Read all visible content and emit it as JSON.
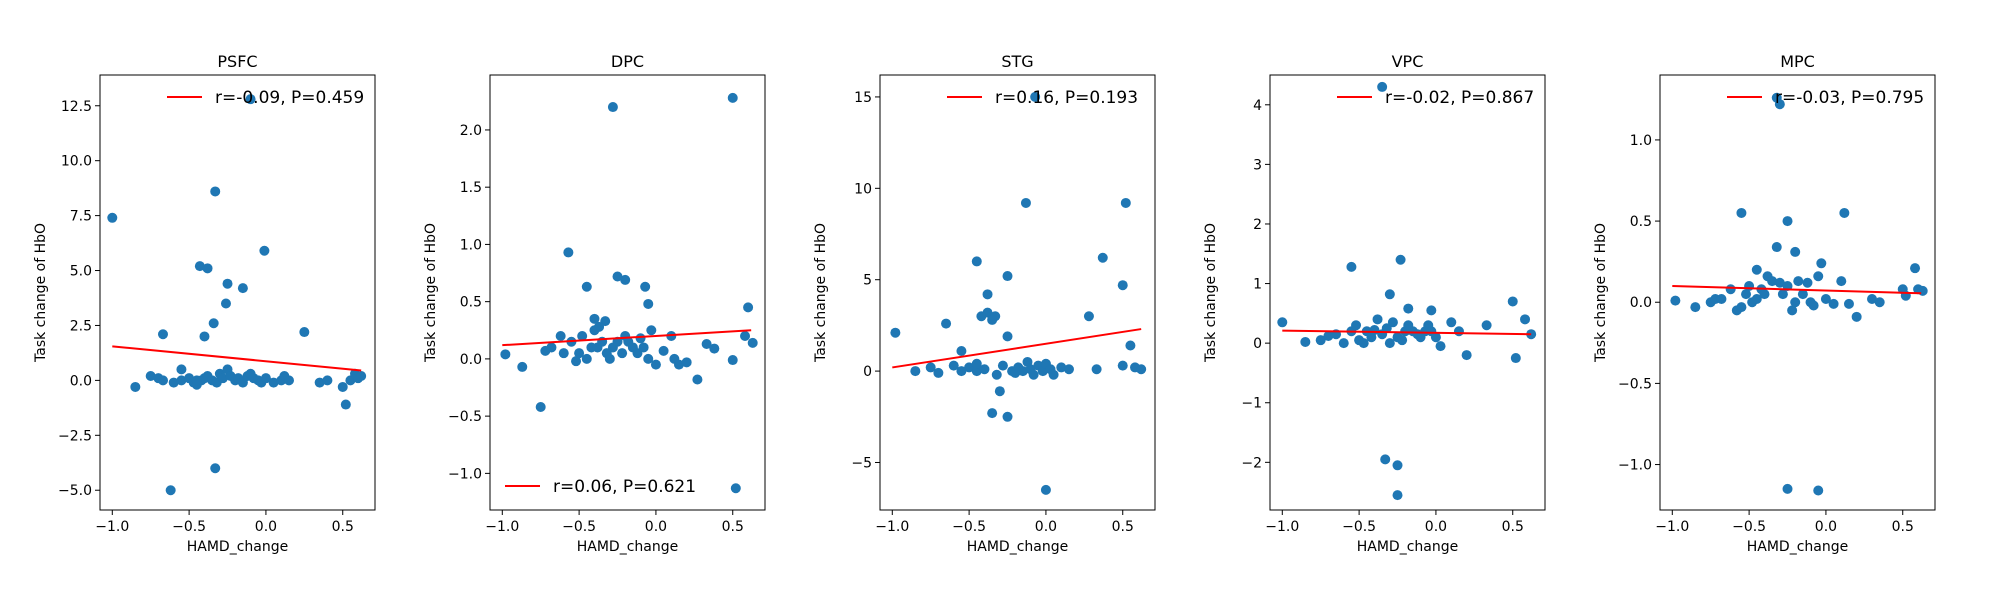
{
  "chart_data": [
    {
      "type": "scatter",
      "title": "PSFC",
      "xlabel": "HAMD_change",
      "ylabel": "Task change of HbO",
      "xlim": [
        -1.08,
        0.71
      ],
      "ylim": [
        -5.9,
        13.9
      ],
      "xticks": [
        -1.0,
        -0.5,
        0.0,
        0.5
      ],
      "xtick_labels": [
        "−1.0",
        "−0.5",
        "0.0",
        "0.5"
      ],
      "yticks": [
        -5.0,
        -2.5,
        0.0,
        2.5,
        5.0,
        7.5,
        10.0,
        12.5
      ],
      "ytick_labels": [
        "−5.0",
        "−2.5",
        "0.0",
        "2.5",
        "5.0",
        "7.5",
        "10.0",
        "12.5"
      ],
      "legend": {
        "text": "r=-0.09, P=0.459",
        "placement": "top-right"
      },
      "fit_line": {
        "x": [
          -1.0,
          0.62
        ],
        "y": [
          1.55,
          0.45
        ]
      },
      "points": {
        "x": [
          -0.1,
          -1.0,
          -0.33,
          -0.43,
          -0.38,
          -0.01,
          -0.25,
          -0.15,
          -0.26,
          -0.34,
          -0.4,
          -0.67,
          0.25,
          -0.85,
          -0.55,
          -0.75,
          -0.7,
          -0.67,
          -0.6,
          -0.55,
          -0.5,
          -0.47,
          -0.45,
          -0.42,
          -0.4,
          -0.38,
          -0.35,
          -0.32,
          -0.3,
          -0.28,
          -0.25,
          -0.23,
          -0.2,
          -0.18,
          -0.15,
          -0.12,
          -0.1,
          -0.08,
          -0.05,
          -0.03,
          0.0,
          0.05,
          0.1,
          0.12,
          0.15,
          0.35,
          0.4,
          0.5,
          0.55,
          0.58,
          0.6,
          0.62,
          0.52,
          -0.62,
          -0.33,
          -0.45
        ],
        "y": [
          12.8,
          7.4,
          8.6,
          5.2,
          5.1,
          5.9,
          4.4,
          4.2,
          3.5,
          2.6,
          2.0,
          2.1,
          2.2,
          -0.3,
          0.5,
          0.2,
          0.1,
          0.0,
          -0.1,
          0.0,
          0.1,
          -0.1,
          -0.2,
          0.0,
          0.1,
          0.2,
          0.0,
          -0.1,
          0.3,
          0.1,
          0.5,
          0.2,
          0.0,
          0.1,
          -0.1,
          0.2,
          0.3,
          0.1,
          0.0,
          -0.1,
          0.1,
          -0.1,
          0.0,
          0.2,
          0.0,
          -0.1,
          0.0,
          -0.3,
          0.0,
          0.3,
          0.1,
          0.2,
          -1.1,
          -5.0,
          -4.0,
          0.0
        ]
      }
    },
    {
      "type": "scatter",
      "title": "DPC",
      "xlabel": "HAMD_change",
      "ylabel": "Task change of HbO",
      "xlim": [
        -1.08,
        0.71
      ],
      "ylim": [
        -1.32,
        2.48
      ],
      "xticks": [
        -1.0,
        -0.5,
        0.0,
        0.5
      ],
      "xtick_labels": [
        "−1.0",
        "−0.5",
        "0.0",
        "0.5"
      ],
      "yticks": [
        -1.0,
        -0.5,
        0.0,
        0.5,
        1.0,
        1.5,
        2.0
      ],
      "ytick_labels": [
        "−1.0",
        "−0.5",
        "0.0",
        "0.5",
        "1.0",
        "1.5",
        "2.0"
      ],
      "legend": {
        "text": "r=0.06, P=0.621",
        "placement": "bottom-left"
      },
      "fit_line": {
        "x": [
          -1.0,
          0.62
        ],
        "y": [
          0.12,
          0.25
        ]
      },
      "points": {
        "x": [
          -0.28,
          0.5,
          -0.57,
          -0.2,
          -0.25,
          -0.45,
          -0.07,
          -0.05,
          -0.4,
          -0.33,
          -0.37,
          0.6,
          -0.03,
          -0.75,
          -0.98,
          -0.87,
          -0.72,
          -0.68,
          -0.62,
          -0.6,
          -0.55,
          -0.52,
          -0.5,
          -0.48,
          -0.45,
          -0.42,
          -0.4,
          -0.38,
          -0.35,
          -0.32,
          -0.3,
          -0.28,
          -0.25,
          -0.22,
          -0.2,
          -0.18,
          -0.15,
          -0.12,
          -0.1,
          -0.08,
          -0.05,
          0.0,
          0.05,
          0.1,
          0.12,
          0.15,
          0.2,
          0.27,
          0.33,
          0.38,
          0.5,
          0.58,
          0.63,
          0.52
        ],
        "y": [
          2.2,
          2.28,
          0.93,
          0.69,
          0.72,
          0.63,
          0.63,
          0.48,
          0.35,
          0.33,
          0.28,
          0.45,
          0.25,
          -0.42,
          0.04,
          -0.07,
          0.07,
          0.1,
          0.2,
          0.05,
          0.15,
          -0.02,
          0.05,
          0.2,
          0.0,
          0.1,
          0.25,
          0.1,
          0.15,
          0.05,
          0.0,
          0.1,
          0.15,
          0.05,
          0.2,
          0.15,
          0.1,
          0.05,
          0.18,
          0.1,
          0.0,
          -0.05,
          0.07,
          0.2,
          0.0,
          -0.05,
          -0.03,
          -0.18,
          0.13,
          0.09,
          -0.01,
          0.2,
          0.14,
          -1.13
        ]
      }
    },
    {
      "type": "scatter",
      "title": "STG",
      "xlabel": "HAMD_change",
      "ylabel": "Task change of HbO",
      "xlim": [
        -1.08,
        0.71
      ],
      "ylim": [
        -7.6,
        16.2
      ],
      "xticks": [
        -1.0,
        -0.5,
        0.0,
        0.5
      ],
      "xtick_labels": [
        "−1.0",
        "−0.5",
        "0.0",
        "0.5"
      ],
      "yticks": [
        -5,
        0,
        5,
        10,
        15
      ],
      "ytick_labels": [
        "−5",
        "0",
        "5",
        "10",
        "15"
      ],
      "legend": {
        "text": "r=0.16, P=0.193",
        "placement": "top-right"
      },
      "fit_line": {
        "x": [
          -1.0,
          0.62
        ],
        "y": [
          0.2,
          2.3
        ]
      },
      "points": {
        "x": [
          -0.07,
          -0.13,
          0.52,
          0.37,
          -0.45,
          -0.25,
          0.5,
          -0.38,
          -0.42,
          -0.38,
          -0.33,
          -0.35,
          0.28,
          0.55,
          -0.98,
          -0.65,
          -0.55,
          -0.25,
          -0.3,
          -0.35,
          -0.25,
          0.0,
          -0.85,
          -0.75,
          -0.7,
          -0.6,
          -0.5,
          -0.45,
          -0.4,
          -0.32,
          -0.28,
          -0.22,
          -0.2,
          -0.18,
          -0.15,
          -0.12,
          -0.1,
          -0.08,
          -0.05,
          -0.02,
          0.0,
          0.03,
          0.05,
          0.1,
          0.15,
          0.33,
          0.5,
          0.58,
          0.62,
          -0.45,
          -0.55
        ],
        "y": [
          15.0,
          9.2,
          9.2,
          6.2,
          6.0,
          5.2,
          4.7,
          4.2,
          3.0,
          3.2,
          3.0,
          2.8,
          3.0,
          1.4,
          2.1,
          2.6,
          1.1,
          1.9,
          -1.1,
          -2.3,
          -2.5,
          -6.5,
          0.0,
          0.2,
          -0.1,
          0.3,
          0.2,
          0.0,
          0.1,
          -0.2,
          0.3,
          0.0,
          -0.1,
          0.2,
          0.0,
          0.5,
          0.1,
          -0.2,
          0.3,
          0.0,
          0.4,
          0.1,
          -0.2,
          0.2,
          0.1,
          0.1,
          0.3,
          0.2,
          0.1,
          0.4,
          0.0
        ]
      }
    },
    {
      "type": "scatter",
      "title": "VPC",
      "xlabel": "HAMD_change",
      "ylabel": "Task change of HbO",
      "xlim": [
        -1.08,
        0.71
      ],
      "ylim": [
        -2.8,
        4.5
      ],
      "xticks": [
        -1.0,
        -0.5,
        0.0,
        0.5
      ],
      "xtick_labels": [
        "−1.0",
        "−0.5",
        "0.0",
        "0.5"
      ],
      "yticks": [
        -2,
        -1,
        0,
        1,
        2,
        3,
        4
      ],
      "ytick_labels": [
        "−2",
        "−1",
        "0",
        "1",
        "2",
        "3",
        "4"
      ],
      "legend": {
        "text": "r=-0.02, P=0.867",
        "placement": "top-right"
      },
      "fit_line": {
        "x": [
          -1.0,
          0.62
        ],
        "y": [
          0.21,
          0.15
        ]
      },
      "points": {
        "x": [
          -0.35,
          -0.23,
          -0.55,
          -0.3,
          -0.33,
          -0.25,
          -0.25,
          -1.0,
          -0.85,
          -0.75,
          -0.7,
          -0.65,
          -0.6,
          -0.55,
          -0.52,
          -0.5,
          -0.47,
          -0.45,
          -0.42,
          -0.4,
          -0.38,
          -0.35,
          -0.32,
          -0.3,
          -0.28,
          -0.25,
          -0.22,
          -0.2,
          -0.18,
          -0.15,
          -0.12,
          -0.1,
          -0.07,
          -0.05,
          -0.03,
          0.0,
          0.03,
          0.1,
          0.15,
          0.2,
          0.33,
          0.5,
          0.52,
          0.58,
          0.62,
          -0.18,
          -0.03
        ],
        "y": [
          4.3,
          1.4,
          1.28,
          0.82,
          -1.95,
          -2.05,
          -2.55,
          0.35,
          0.02,
          0.05,
          0.12,
          0.15,
          0.0,
          0.2,
          0.3,
          0.05,
          0.0,
          0.2,
          0.1,
          0.22,
          0.4,
          0.15,
          0.25,
          0.0,
          0.35,
          0.1,
          0.05,
          0.2,
          0.3,
          0.2,
          0.15,
          0.1,
          0.2,
          0.3,
          0.2,
          0.1,
          -0.05,
          0.35,
          0.2,
          -0.2,
          0.3,
          0.7,
          -0.25,
          0.4,
          0.15,
          0.58,
          0.55
        ]
      }
    },
    {
      "type": "scatter",
      "title": "MPC",
      "xlabel": "HAMD_change",
      "ylabel": "Task change of HbO",
      "xlim": [
        -1.08,
        0.71
      ],
      "ylim": [
        -1.28,
        1.4
      ],
      "xticks": [
        -1.0,
        -0.5,
        0.0,
        0.5
      ],
      "xtick_labels": [
        "−1.0",
        "−0.5",
        "0.0",
        "0.5"
      ],
      "yticks": [
        -1.0,
        -0.5,
        0.0,
        0.5,
        1.0
      ],
      "ytick_labels": [
        "−1.0",
        "−0.5",
        "0.0",
        "0.5",
        "1.0"
      ],
      "legend": {
        "text": "r=-0.03, P=0.795",
        "placement": "top-right"
      },
      "fit_line": {
        "x": [
          -1.0,
          0.62
        ],
        "y": [
          0.1,
          0.055
        ]
      },
      "points": {
        "x": [
          -0.32,
          -0.3,
          -0.55,
          0.12,
          -0.25,
          -0.32,
          -0.2,
          -0.03,
          -0.45,
          -0.38,
          -0.98,
          -0.85,
          -0.75,
          -0.72,
          -0.68,
          -0.62,
          -0.58,
          -0.55,
          -0.52,
          -0.5,
          -0.48,
          -0.45,
          -0.42,
          -0.4,
          -0.35,
          -0.3,
          -0.28,
          -0.25,
          -0.22,
          -0.2,
          -0.18,
          -0.15,
          -0.12,
          -0.1,
          -0.08,
          -0.05,
          0.0,
          0.05,
          0.1,
          0.15,
          0.2,
          0.3,
          0.35,
          0.5,
          0.52,
          0.58,
          0.6,
          0.63,
          -0.25,
          -0.05
        ],
        "y": [
          1.26,
          1.22,
          0.55,
          0.55,
          0.5,
          0.34,
          0.31,
          0.24,
          0.2,
          0.16,
          0.01,
          -0.03,
          0.0,
          0.02,
          0.02,
          0.08,
          -0.05,
          -0.03,
          0.05,
          0.1,
          0.0,
          0.02,
          0.08,
          0.05,
          0.13,
          0.12,
          0.05,
          0.1,
          -0.05,
          0.0,
          0.13,
          0.05,
          0.12,
          0.0,
          -0.02,
          0.16,
          0.02,
          -0.01,
          0.13,
          -0.01,
          -0.09,
          0.02,
          0.0,
          0.08,
          0.04,
          0.21,
          0.08,
          0.07,
          -1.15,
          -1.16
        ]
      }
    }
  ]
}
